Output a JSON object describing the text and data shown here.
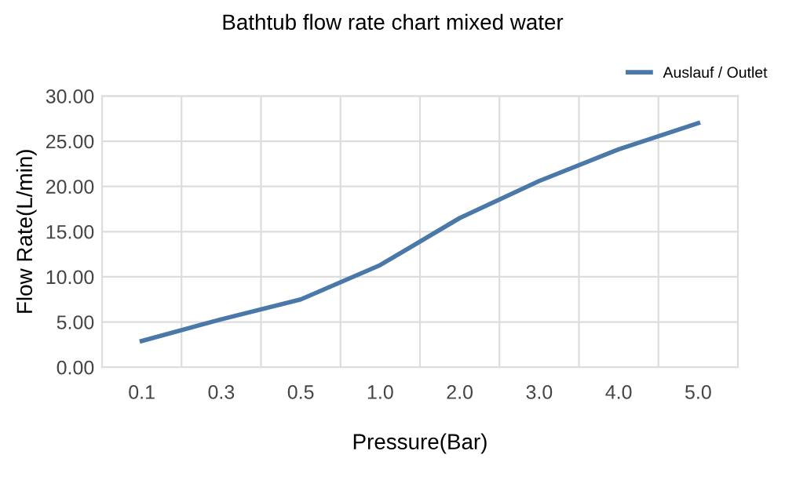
{
  "chart_data": {
    "type": "line",
    "title": "Bathtub flow rate chart mixed water",
    "xlabel": "Pressure(Bar)",
    "ylabel": "Flow Rate(L/min)",
    "categories": [
      "0.1",
      "0.3",
      "0.5",
      "1.0",
      "2.0",
      "3.0",
      "4.0",
      "5.0"
    ],
    "series": [
      {
        "name": "Auslauf / Outlet",
        "color": "#4a78a8",
        "values": [
          2.9,
          5.3,
          7.5,
          11.3,
          16.5,
          20.6,
          24.1,
          27.0
        ]
      }
    ],
    "ylim": [
      0,
      30
    ],
    "yticks": [
      {
        "value": 0,
        "label": "0.00"
      },
      {
        "value": 5,
        "label": "5.00"
      },
      {
        "value": 10,
        "label": "10.00"
      },
      {
        "value": 15,
        "label": "15.00"
      },
      {
        "value": 20,
        "label": "20.00"
      },
      {
        "value": 25,
        "label": "25.00"
      },
      {
        "value": 30,
        "label": "30.00"
      }
    ],
    "grid": true,
    "legend": "top right",
    "marker": "none",
    "line_style": "solid"
  }
}
